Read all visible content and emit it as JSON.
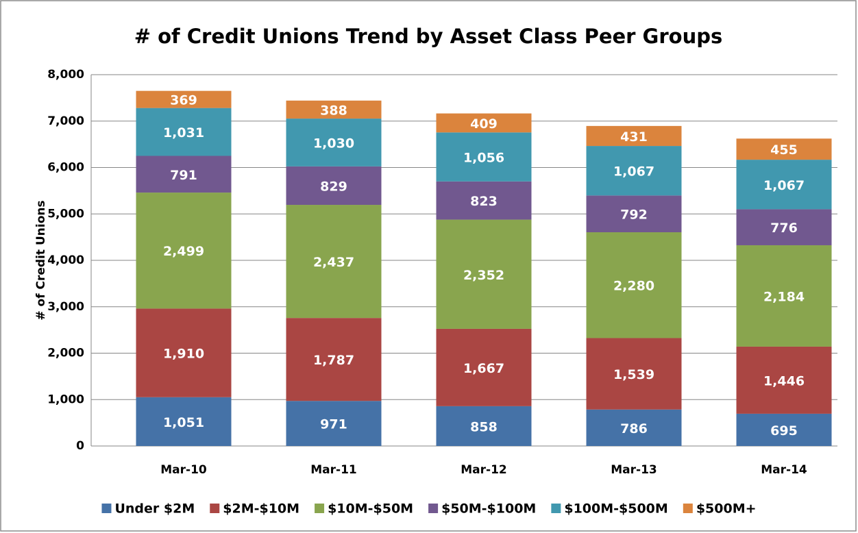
{
  "chart_data": {
    "type": "stacked-bar",
    "title": "# of Credit Unions Trend by Asset Class Peer Groups",
    "y_label": "# of Credit Unions",
    "categories": [
      "Mar-10",
      "Mar-11",
      "Mar-12",
      "Mar-13",
      "Mar-14"
    ],
    "series": [
      {
        "name": "Under $2M",
        "color": "#4572a7",
        "values": [
          1051,
          971,
          858,
          786,
          695
        ],
        "value_labels": [
          "1,051",
          "971",
          "858",
          "786",
          "695"
        ]
      },
      {
        "name": "$2M-$10M",
        "color": "#aa4643",
        "values": [
          1910,
          1787,
          1667,
          1539,
          1446
        ],
        "value_labels": [
          "1,910",
          "1,787",
          "1,667",
          "1,539",
          "1,446"
        ]
      },
      {
        "name": "$10M-$50M",
        "color": "#89a54e",
        "values": [
          2499,
          2437,
          2352,
          2280,
          2184
        ],
        "value_labels": [
          "2,499",
          "2,437",
          "2,352",
          "2,280",
          "2,184"
        ]
      },
      {
        "name": "$50M-$100M",
        "color": "#71588f",
        "values": [
          791,
          829,
          823,
          792,
          776
        ],
        "value_labels": [
          "791",
          "829",
          "823",
          "792",
          "776"
        ]
      },
      {
        "name": "$100M-$500M",
        "color": "#4198af",
        "values": [
          1031,
          1030,
          1056,
          1067,
          1067
        ],
        "value_labels": [
          "1,031",
          "1,030",
          "1,056",
          "1,067",
          "1,067"
        ]
      },
      {
        "name": "$500M+",
        "color": "#db843d",
        "values": [
          369,
          388,
          409,
          431,
          455
        ],
        "value_labels": [
          "369",
          "388",
          "409",
          "431",
          "455"
        ]
      }
    ],
    "ylim": [
      0,
      8000
    ],
    "yticks": [
      0,
      {
        "value": 1000,
        "label": "1,000"
      },
      {
        "value": 2000,
        "label": "2,000"
      },
      {
        "value": 3000,
        "label": "3,000"
      },
      {
        "value": 4000,
        "label": "4,000"
      },
      {
        "value": 5000,
        "label": "5,000"
      },
      {
        "value": 6000,
        "label": "6,000"
      },
      {
        "value": 7000,
        "label": "7,000"
      },
      {
        "value": 8000,
        "label": "8,000"
      }
    ],
    "grid": true,
    "legend": "bottom"
  }
}
